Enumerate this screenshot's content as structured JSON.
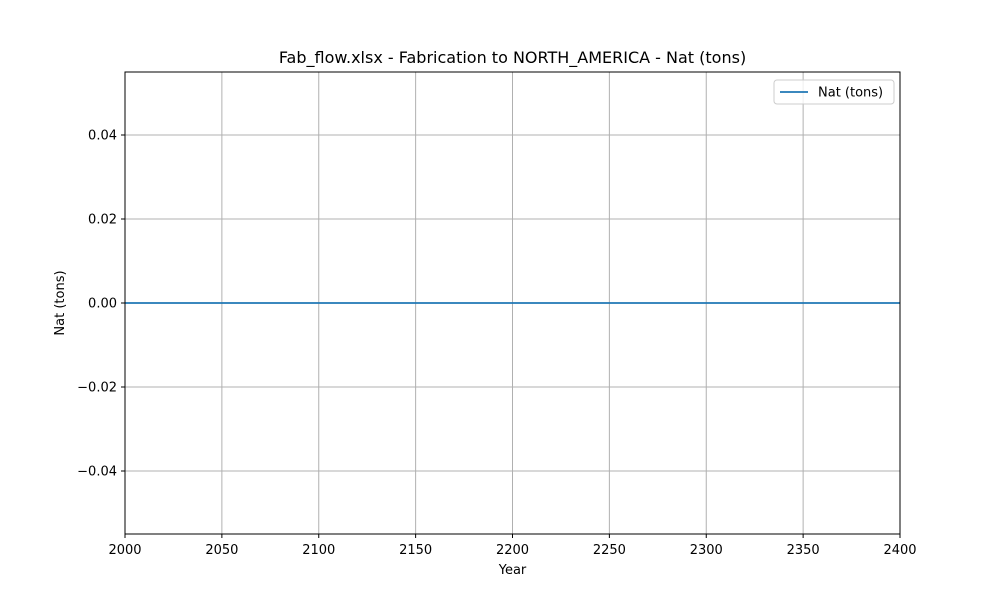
{
  "chart_data": {
    "type": "line",
    "title": "Fab_flow.xlsx - Fabrication to NORTH_AMERICA - Nat (tons)",
    "xlabel": "Year",
    "ylabel": "Nat (tons)",
    "xlim": [
      2000,
      2400
    ],
    "ylim": [
      -0.055,
      0.055
    ],
    "x_ticks": [
      2000,
      2050,
      2100,
      2150,
      2200,
      2250,
      2300,
      2350,
      2400
    ],
    "x_tick_labels": [
      "2000",
      "2050",
      "2100",
      "2150",
      "2200",
      "2250",
      "2300",
      "2350",
      "2400"
    ],
    "y_ticks": [
      -0.04,
      -0.02,
      0.0,
      0.02,
      0.04
    ],
    "y_tick_labels": [
      "−0.04",
      "−0.02",
      "0.00",
      "0.02",
      "0.04"
    ],
    "grid": true,
    "legend": "top-right",
    "series": [
      {
        "name": "Nat (tons)",
        "color": "#1f77b4",
        "x": [
          2000,
          2400
        ],
        "y": [
          0,
          0
        ]
      }
    ]
  }
}
